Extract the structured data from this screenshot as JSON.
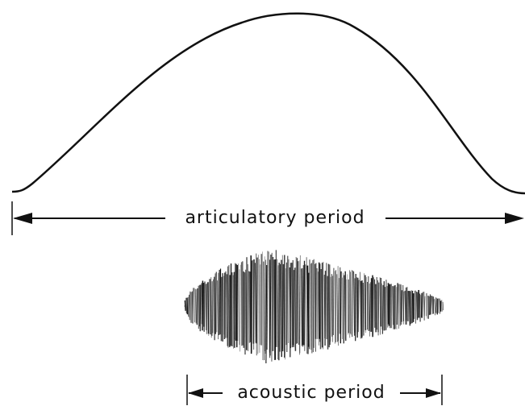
{
  "labels": {
    "articulatory": "articulatory period",
    "acoustic": "acoustic period"
  }
}
